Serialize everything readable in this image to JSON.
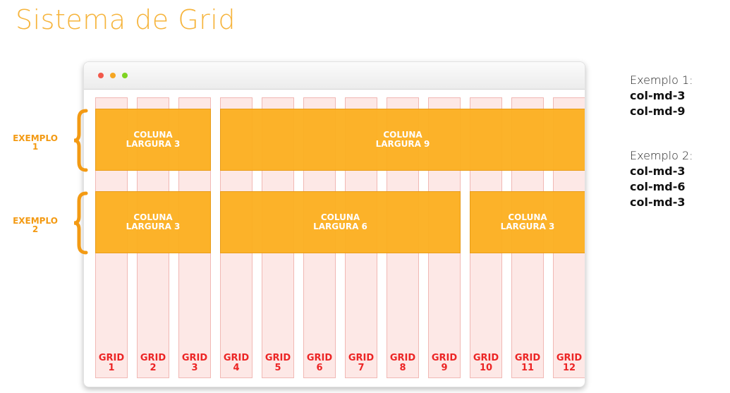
{
  "title": "Sistema de Grid",
  "colors": {
    "title": "#f6b43c",
    "column_block": "#fcb022",
    "grid_column": "#fde8e6",
    "grid_label": "#ec2525",
    "example_label": "#f39a13",
    "window_dots": [
      "#f2594b",
      "#f5a623",
      "#7ed321"
    ]
  },
  "grid": {
    "labels": [
      "GRID\n1",
      "GRID\n2",
      "GRID\n3",
      "GRID\n4",
      "GRID\n5",
      "GRID\n6",
      "GRID\n7",
      "GRID\n8",
      "GRID\n9",
      "GRID\n10",
      "GRID\n11",
      "GRID\n12"
    ]
  },
  "examples": [
    {
      "label": "EXEMPLO\n1",
      "blocks": [
        {
          "label": "COLUNA\nLARGURA 3",
          "span": 3
        },
        {
          "label": "COLUNA\nLARGURA 9",
          "span": 9
        }
      ]
    },
    {
      "label": "EXEMPLO\n2",
      "blocks": [
        {
          "label": "COLUNA\nLARGURA 3",
          "span": 3
        },
        {
          "label": "COLUNA\nLARGURA 6",
          "span": 6
        },
        {
          "label": "COLUNA\nLARGURA 3",
          "span": 3
        }
      ]
    }
  ],
  "legend": {
    "example1_heading": "Exemplo 1:",
    "example1_classes": [
      "col-md-3",
      "col-md-9"
    ],
    "example2_heading": "Exemplo 2:",
    "example2_classes": [
      "col-md-3",
      "col-md-6",
      "col-md-3"
    ]
  }
}
